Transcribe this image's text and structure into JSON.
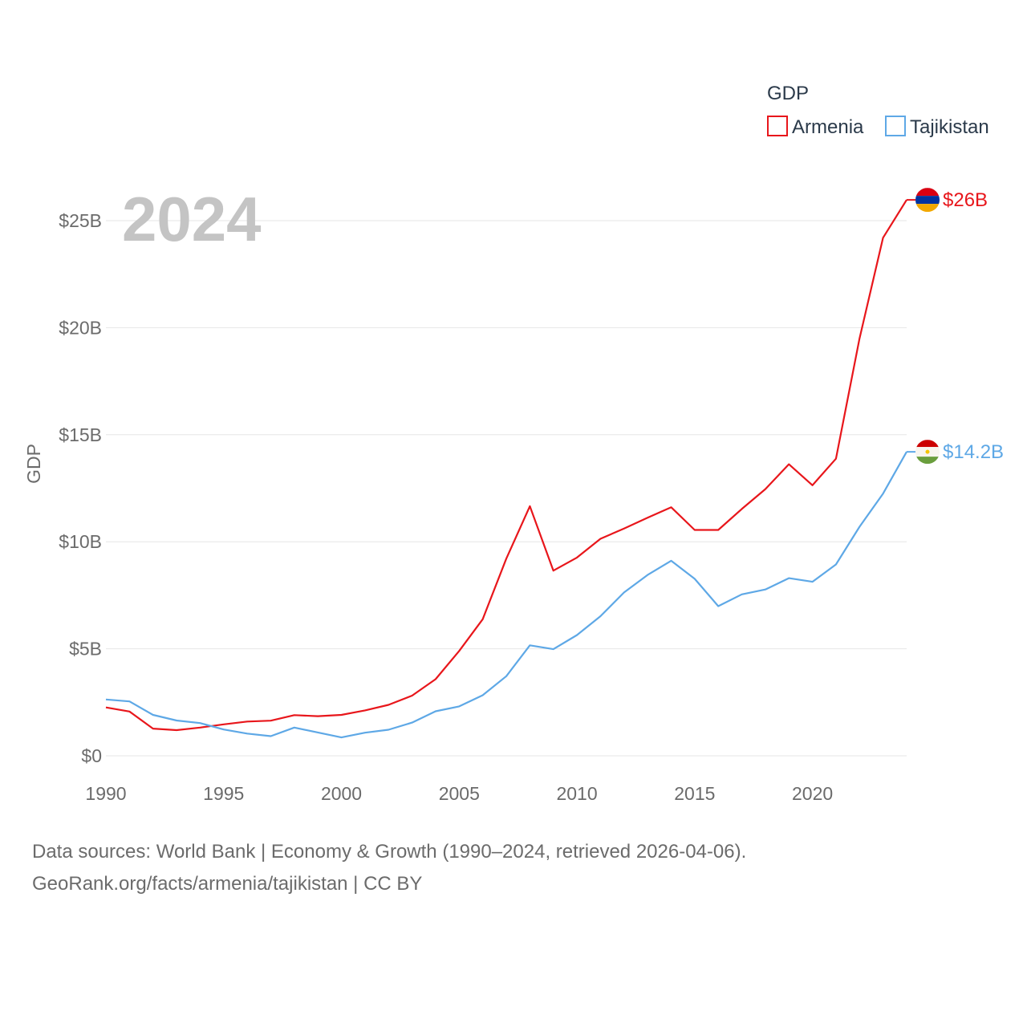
{
  "chart_data": {
    "type": "line",
    "title": "GDP",
    "highlight_year_label": "2024",
    "ylabel": "GDP",
    "xlabel": "",
    "xlim": [
      1990,
      2024
    ],
    "ylim": [
      0,
      27
    ],
    "x_ticks": [
      1990,
      1995,
      2000,
      2005,
      2010,
      2015,
      2020
    ],
    "x_tick_labels": [
      "1990",
      "1995",
      "2000",
      "2005",
      "2010",
      "2015",
      "2020"
    ],
    "y_ticks": [
      0,
      5,
      10,
      15,
      20,
      25
    ],
    "y_tick_labels": [
      "$0",
      "$5B",
      "$10B",
      "$15B",
      "$20B",
      "$25B"
    ],
    "grid": true,
    "legend_position": "top-right",
    "x": [
      1990,
      1991,
      1992,
      1993,
      1994,
      1995,
      1996,
      1997,
      1998,
      1999,
      2000,
      2001,
      2002,
      2003,
      2004,
      2005,
      2006,
      2007,
      2008,
      2009,
      2010,
      2011,
      2012,
      2013,
      2014,
      2015,
      2016,
      2017,
      2018,
      2019,
      2020,
      2021,
      2022,
      2023,
      2024
    ],
    "series": [
      {
        "name": "Armenia",
        "color": "#e8161b",
        "end_label": "$26B",
        "flag": "armenia-flag",
        "values": [
          2.26,
          2.07,
          1.27,
          1.2,
          1.32,
          1.47,
          1.6,
          1.64,
          1.9,
          1.85,
          1.91,
          2.12,
          2.38,
          2.81,
          3.58,
          4.9,
          6.38,
          9.21,
          11.66,
          8.65,
          9.26,
          10.14,
          10.62,
          11.12,
          11.61,
          10.55,
          10.55,
          11.53,
          12.46,
          13.62,
          12.64,
          13.88,
          19.5,
          24.2,
          25.97
        ]
      },
      {
        "name": "Tajikistan",
        "color": "#5ea8e6",
        "end_label": "$14.2B",
        "flag": "tajikistan-flag",
        "values": [
          2.63,
          2.54,
          1.91,
          1.65,
          1.53,
          1.23,
          1.04,
          0.92,
          1.32,
          1.09,
          0.86,
          1.08,
          1.22,
          1.55,
          2.08,
          2.31,
          2.83,
          3.72,
          5.16,
          4.98,
          5.64,
          6.52,
          7.63,
          8.45,
          9.11,
          8.27,
          6.99,
          7.54,
          7.77,
          8.3,
          8.13,
          8.94,
          10.7,
          12.25,
          14.2
        ]
      }
    ]
  },
  "footer": {
    "line1": "Data sources: World Bank | Economy & Growth (1990–2024, retrieved 2026-04-06).",
    "line2": "GeoRank.org/facts/armenia/tajikistan | CC BY"
  }
}
